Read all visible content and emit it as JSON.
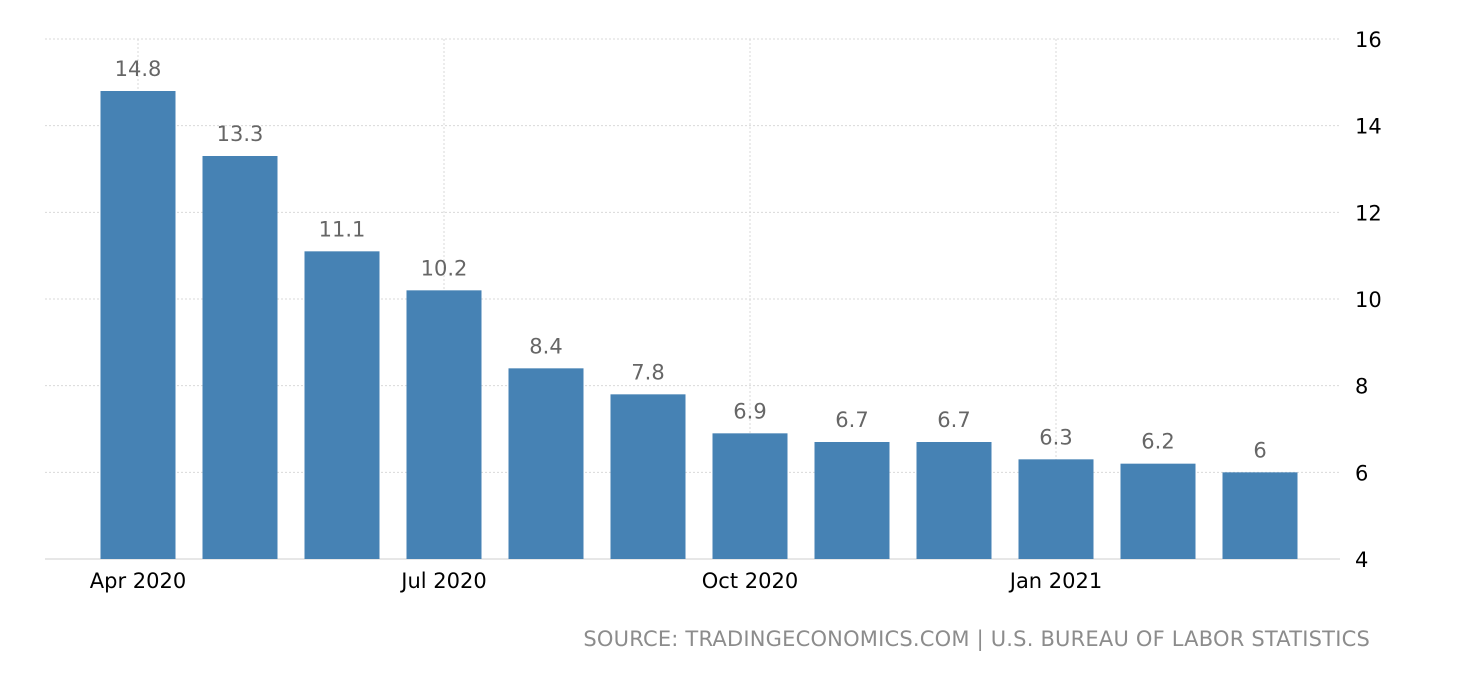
{
  "chart_data": {
    "type": "bar",
    "categories": [
      "Apr 2020",
      "May 2020",
      "Jun 2020",
      "Jul 2020",
      "Aug 2020",
      "Sep 2020",
      "Oct 2020",
      "Nov 2020",
      "Dec 2020",
      "Jan 2021",
      "Feb 2021",
      "Mar 2021"
    ],
    "values": [
      14.8,
      13.3,
      11.1,
      10.2,
      8.4,
      7.8,
      6.9,
      6.7,
      6.7,
      6.3,
      6.2,
      6
    ],
    "value_labels": [
      "14.8",
      "13.3",
      "11.1",
      "10.2",
      "8.4",
      "7.8",
      "6.9",
      "6.7",
      "6.7",
      "6.3",
      "6.2",
      "6"
    ],
    "x_tick_labels": [
      {
        "category": "Apr 2020",
        "label": "Apr 2020"
      },
      {
        "category": "Jul 2020",
        "label": "Jul 2020"
      },
      {
        "category": "Oct 2020",
        "label": "Oct 2020"
      },
      {
        "category": "Jan 2021",
        "label": "Jan 2021"
      }
    ],
    "y_ticks": [
      4,
      6,
      8,
      10,
      12,
      14,
      16
    ],
    "ylim": [
      4,
      16
    ],
    "y_axis_side": "right",
    "grid": true,
    "bar_color": "#4682b4",
    "title": "",
    "xlabel": "",
    "ylabel": ""
  },
  "source_text": "SOURCE: TRADINGECONOMICS.COM | U.S. BUREAU OF LABOR STATISTICS"
}
